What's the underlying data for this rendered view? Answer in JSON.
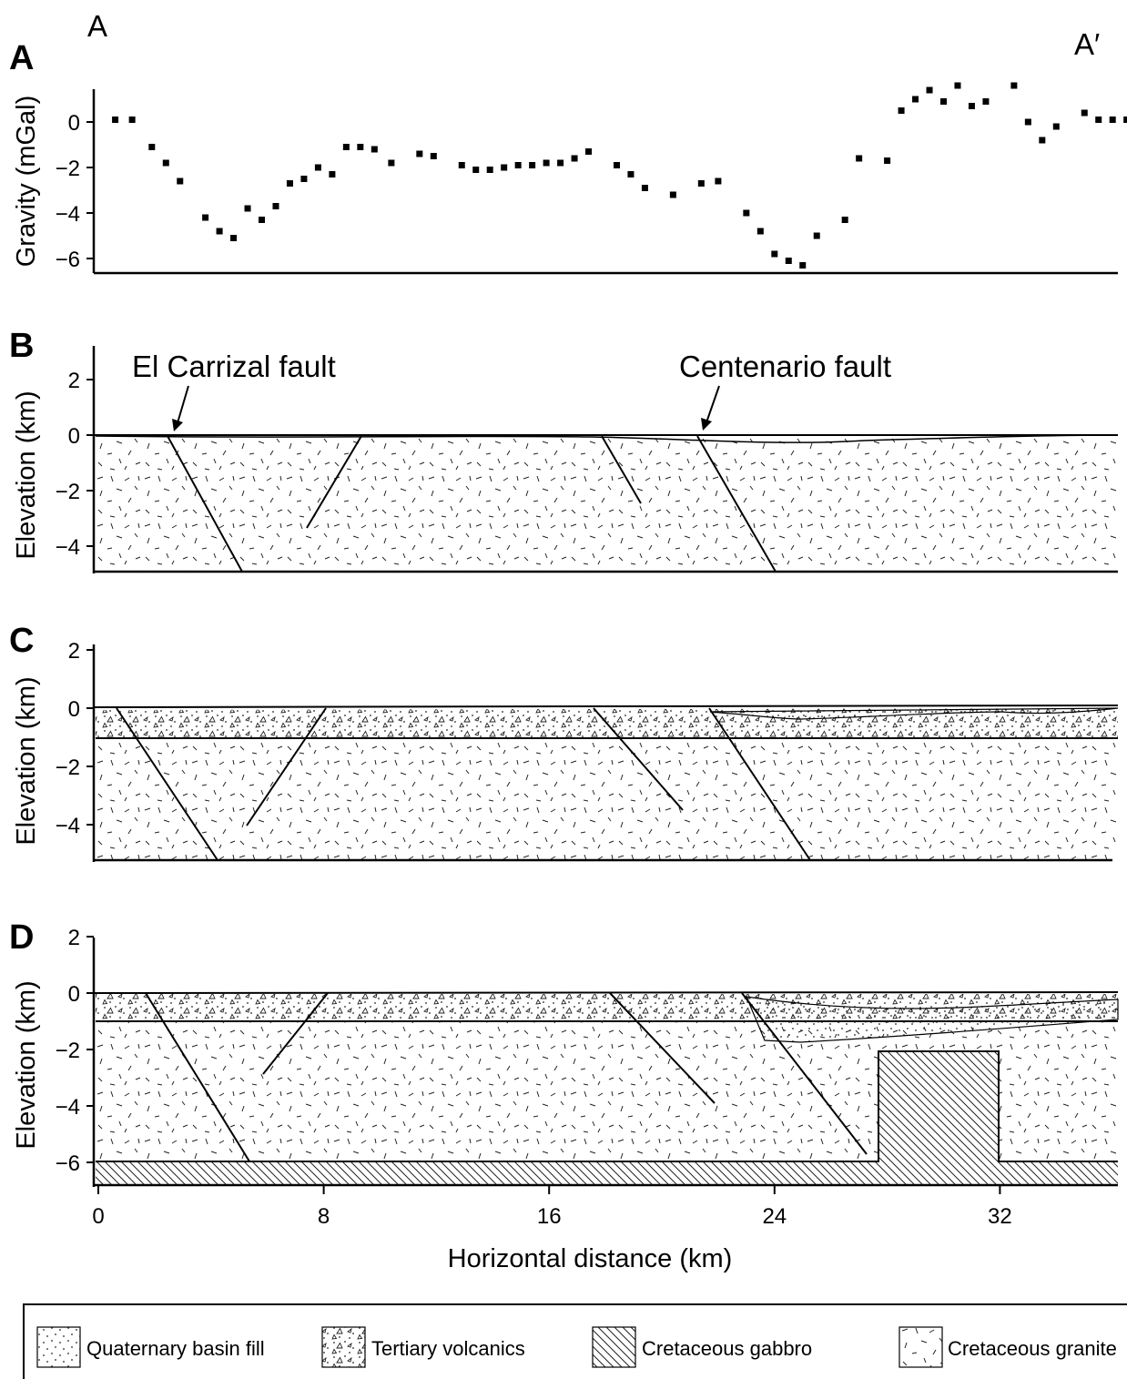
{
  "chart_data": [
    {
      "panel": "A",
      "type": "scatter",
      "section_start": "A",
      "section_end": "A′",
      "ylabel": "Gravity (mGal)",
      "yticks": [
        0,
        -2,
        -4,
        -6
      ],
      "ylim": [
        -6.7,
        1.4
      ],
      "xlim": [
        0,
        37.8
      ],
      "x": [
        0.6,
        1.2,
        1.9,
        2.4,
        2.9,
        3.8,
        4.3,
        4.8,
        5.3,
        5.8,
        6.3,
        6.8,
        7.3,
        7.8,
        8.3,
        8.8,
        9.3,
        9.8,
        10.4,
        11.4,
        11.9,
        12.9,
        13.4,
        13.9,
        14.4,
        14.9,
        15.4,
        15.9,
        16.4,
        16.9,
        17.4,
        18.4,
        18.9,
        19.4,
        20.4,
        21.4,
        22.0,
        23.0,
        23.5,
        24.0,
        24.5,
        25.0,
        25.5,
        26.5,
        27.0,
        28.0,
        28.5,
        29.0,
        29.5,
        30.0,
        30.5,
        31.0,
        31.5,
        32.5,
        33.0,
        33.5,
        34.0,
        35.0,
        35.5,
        36.0,
        36.5,
        37.0
      ],
      "y": [
        0.1,
        0.1,
        -1.1,
        -1.8,
        -2.6,
        -4.2,
        -4.8,
        -5.1,
        -3.8,
        -4.3,
        -3.7,
        -2.7,
        -2.5,
        -2.0,
        -2.3,
        -1.1,
        -1.1,
        -1.2,
        -1.8,
        -1.4,
        -1.5,
        -1.9,
        -2.1,
        -2.1,
        -2.0,
        -1.9,
        -1.9,
        -1.8,
        -1.8,
        -1.6,
        -1.3,
        -1.9,
        -2.3,
        -2.9,
        -3.2,
        -2.7,
        -2.6,
        -4.0,
        -4.8,
        -5.8,
        -6.1,
        -6.3,
        -5.0,
        -4.3,
        -1.6,
        -1.7,
        0.5,
        1.0,
        1.4,
        0.9,
        1.6,
        0.7,
        0.9,
        1.6,
        0.0,
        -0.8,
        -0.2,
        0.4,
        0.1,
        0.1,
        0.1,
        0.1
      ]
    },
    {
      "panel": "B",
      "type": "cross-section",
      "ylabel": "Elevation (km)",
      "yticks": [
        2,
        0,
        -2,
        -4
      ],
      "ylim": [
        -5.0,
        3.0
      ],
      "xlim": [
        0,
        37.8
      ],
      "annotations": [
        {
          "text": "El Carrizal fault",
          "x_km": 2.7
        },
        {
          "text": "Centenario fault",
          "x_km": 22.1
        }
      ],
      "faults_km": [
        [
          2.7,
          0,
          5.4,
          -5.0
        ],
        [
          9.8,
          0,
          7.7,
          -3.4
        ],
        [
          18.7,
          0,
          20.2,
          -2.5
        ],
        [
          22.1,
          0,
          25.0,
          -5.0
        ]
      ]
    },
    {
      "panel": "C",
      "type": "cross-section",
      "ylabel": "Elevation (km)",
      "yticks": [
        2,
        0,
        -2,
        -4
      ],
      "ylim": [
        -5.0,
        2.2
      ],
      "xlim": [
        0,
        37.8
      ],
      "faults_km": [
        [
          0.9,
          0,
          4.5,
          -5.0
        ],
        [
          8.4,
          0,
          5.6,
          -4.0
        ],
        [
          18.3,
          0,
          22.0,
          -3.4
        ],
        [
          22.5,
          0,
          26.5,
          -5.0
        ]
      ]
    },
    {
      "panel": "D",
      "type": "cross-section",
      "ylabel": "Elevation (km)",
      "yticks": [
        2,
        0,
        -2,
        -4,
        -6
      ],
      "ylim": [
        -6.8,
        2.0
      ],
      "xlim": [
        0,
        37.8
      ],
      "xticks": [
        0,
        8,
        16,
        24,
        32
      ],
      "xlabel": "Horizontal distance (km)",
      "faults_km": [
        [
          1.8,
          0,
          5.7,
          -6.0
        ],
        [
          8.6,
          0,
          6.0,
          -2.8
        ],
        [
          19.1,
          0,
          23.0,
          -3.8
        ],
        [
          24.0,
          0,
          27.5,
          -5.8
        ]
      ],
      "gabbro_top_km": -6.0,
      "gabbro_block": {
        "x_from_km": 28.6,
        "x_to_km": 33.1,
        "top_km": -2.0
      }
    }
  ],
  "legend": [
    {
      "label": "Quaternary basin fill",
      "pattern": "dots"
    },
    {
      "label": "Tertiary volcanics",
      "pattern": "triangles"
    },
    {
      "label": "Cretaceous gabbro",
      "pattern": "hatch"
    },
    {
      "label": "Cretaceous granite",
      "pattern": "dashes"
    }
  ]
}
